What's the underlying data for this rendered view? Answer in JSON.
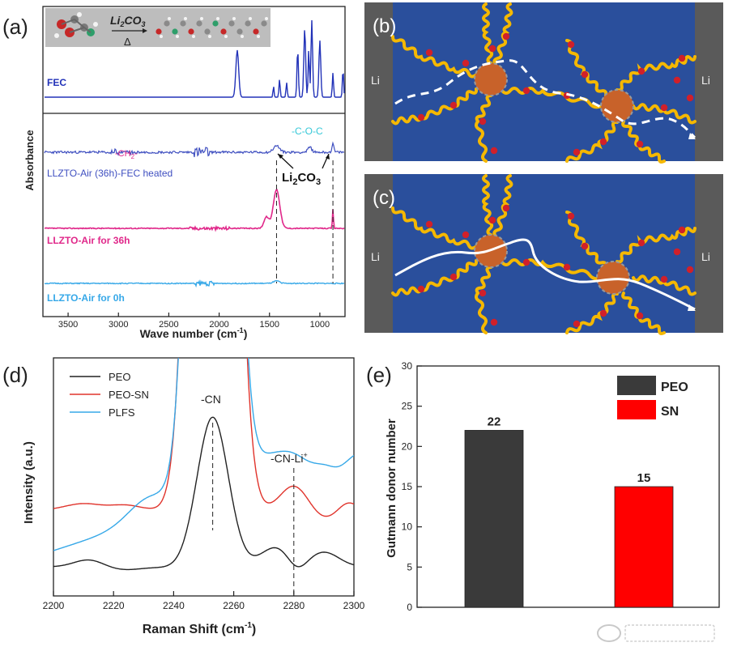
{
  "panels": {
    "a": {
      "letter": "(a)"
    },
    "b": {
      "letter": "(b)"
    },
    "c": {
      "letter": "(c)"
    },
    "d": {
      "letter": "(d)"
    },
    "e": {
      "letter": "(e)"
    }
  },
  "colors": {
    "blue_dark": "#2232b8",
    "blue_mid": "#3f4fc0",
    "magenta": "#e0288a",
    "cyan": "#36a8e8",
    "black": "#222222",
    "red": "#e0332b",
    "panel_blue": "#2a4f9c",
    "electrode": "#5a5a5a",
    "chain": "#f5b800",
    "particle": "#c8622a",
    "bar_peo": "#3a3a3a",
    "bar_sn": "#ff0000"
  },
  "panel_a": {
    "inset_reagent": "Li",
    "inset_reagent_sub": "2",
    "inset_reagent_rest": "CO",
    "inset_reagent_sub2": "3",
    "inset_arrow_label": "Δ",
    "ylabel": "Absorbance",
    "xlabel": "Wave number (cm",
    "xlabel_sup": "-1",
    "xlabel_end": ")",
    "traces": [
      {
        "label": "FEC",
        "color": "#2232b8"
      },
      {
        "label": "LLZTO-Air (36h)-FEC heated",
        "color": "#3f4fc0"
      },
      {
        "label": "LLZTO-Air for 36h",
        "color": "#e0288a"
      },
      {
        "label": "LLZTO-Air for 0h",
        "color": "#36a8e8"
      }
    ],
    "annotations": {
      "ch2": "-CH",
      "ch2_sub": "2",
      "ch2_end": "-",
      "coc": "-C-O-C",
      "li2co3": "Li",
      "li2co3_sub": "2",
      "li2co3_rest": "CO",
      "li2co3_sub2": "3"
    }
  },
  "panel_bc": {
    "left_label": "Li",
    "right_label": "Li"
  },
  "chart_data": [
    {
      "type": "line",
      "panel": "a",
      "title": "",
      "xlabel": "Wave number (cm-1)",
      "ylabel": "Absorbance",
      "x_reversed": true,
      "xlim": [
        3750,
        750
      ],
      "xticks": [
        3500,
        3000,
        2500,
        2000,
        1500,
        1000
      ],
      "series": [
        {
          "name": "FEC",
          "peaks": [
            1820,
            1400,
            1150,
            1080,
            1000,
            870,
            770
          ]
        },
        {
          "name": "LLZTO-Air (36h)-FEC heated",
          "features": [
            "-CH2-",
            "-C-O-C",
            "Li2CO3"
          ]
        },
        {
          "name": "LLZTO-Air for 36h",
          "peaks": [
            1430,
            870
          ]
        },
        {
          "name": "LLZTO-Air for 0h",
          "peaks": []
        }
      ],
      "reference_lines": [
        1430,
        870
      ]
    },
    {
      "type": "line",
      "panel": "d",
      "title": "",
      "xlabel": "Raman Shift (cm-1)",
      "ylabel": "Intensity (a.u.)",
      "xlim": [
        2200,
        2300
      ],
      "xticks": [
        2200,
        2220,
        2240,
        2260,
        2280,
        2300
      ],
      "legend": [
        "PEO",
        "PEO-SN",
        "PLFS"
      ],
      "legend_position": "top-left",
      "series": [
        {
          "name": "PEO",
          "peak": 2253
        },
        {
          "name": "PEO-SN",
          "peaks": [
            2253,
            2280
          ]
        },
        {
          "name": "PLFS",
          "peaks": [
            2253,
            2280
          ]
        }
      ],
      "annotations": [
        "-CN",
        "-CN-Li+"
      ],
      "reference_lines": [
        2253,
        2280
      ]
    },
    {
      "type": "bar",
      "panel": "e",
      "title": "",
      "xlabel": "",
      "ylabel": "Gutmann donor number",
      "categories": [
        "PEO",
        "SN"
      ],
      "values": [
        22,
        15
      ],
      "ylim": [
        0,
        30
      ],
      "yticks": [
        0,
        5,
        10,
        15,
        20,
        25,
        30
      ],
      "legend": [
        "PEO",
        "SN"
      ],
      "legend_position": "top-right",
      "data_labels": [
        "22",
        "15"
      ]
    }
  ],
  "tick_labels": {
    "a_x": [
      "3500",
      "3000",
      "2500",
      "2000",
      "1500",
      "1000"
    ],
    "d_x": [
      "2200",
      "2220",
      "2240",
      "2260",
      "2280",
      "2300"
    ],
    "e_y": [
      "0",
      "5",
      "10",
      "15",
      "20",
      "25",
      "30"
    ]
  },
  "panel_d": {
    "ylabel": "Intensity (a.u.)",
    "xlabel": "Raman Shift (cm",
    "xlabel_sup": "-1",
    "xlabel_end": ")",
    "legend": [
      "PEO",
      "PEO-SN",
      "PLFS"
    ],
    "ann_cn": "-CN",
    "ann_cnli": "-CN-Li",
    "ann_cnli_sup": "+"
  },
  "panel_e": {
    "ylabel": "Gutmann donor number",
    "legend": [
      "PEO",
      "SN"
    ],
    "labels": [
      "22",
      "15"
    ]
  }
}
